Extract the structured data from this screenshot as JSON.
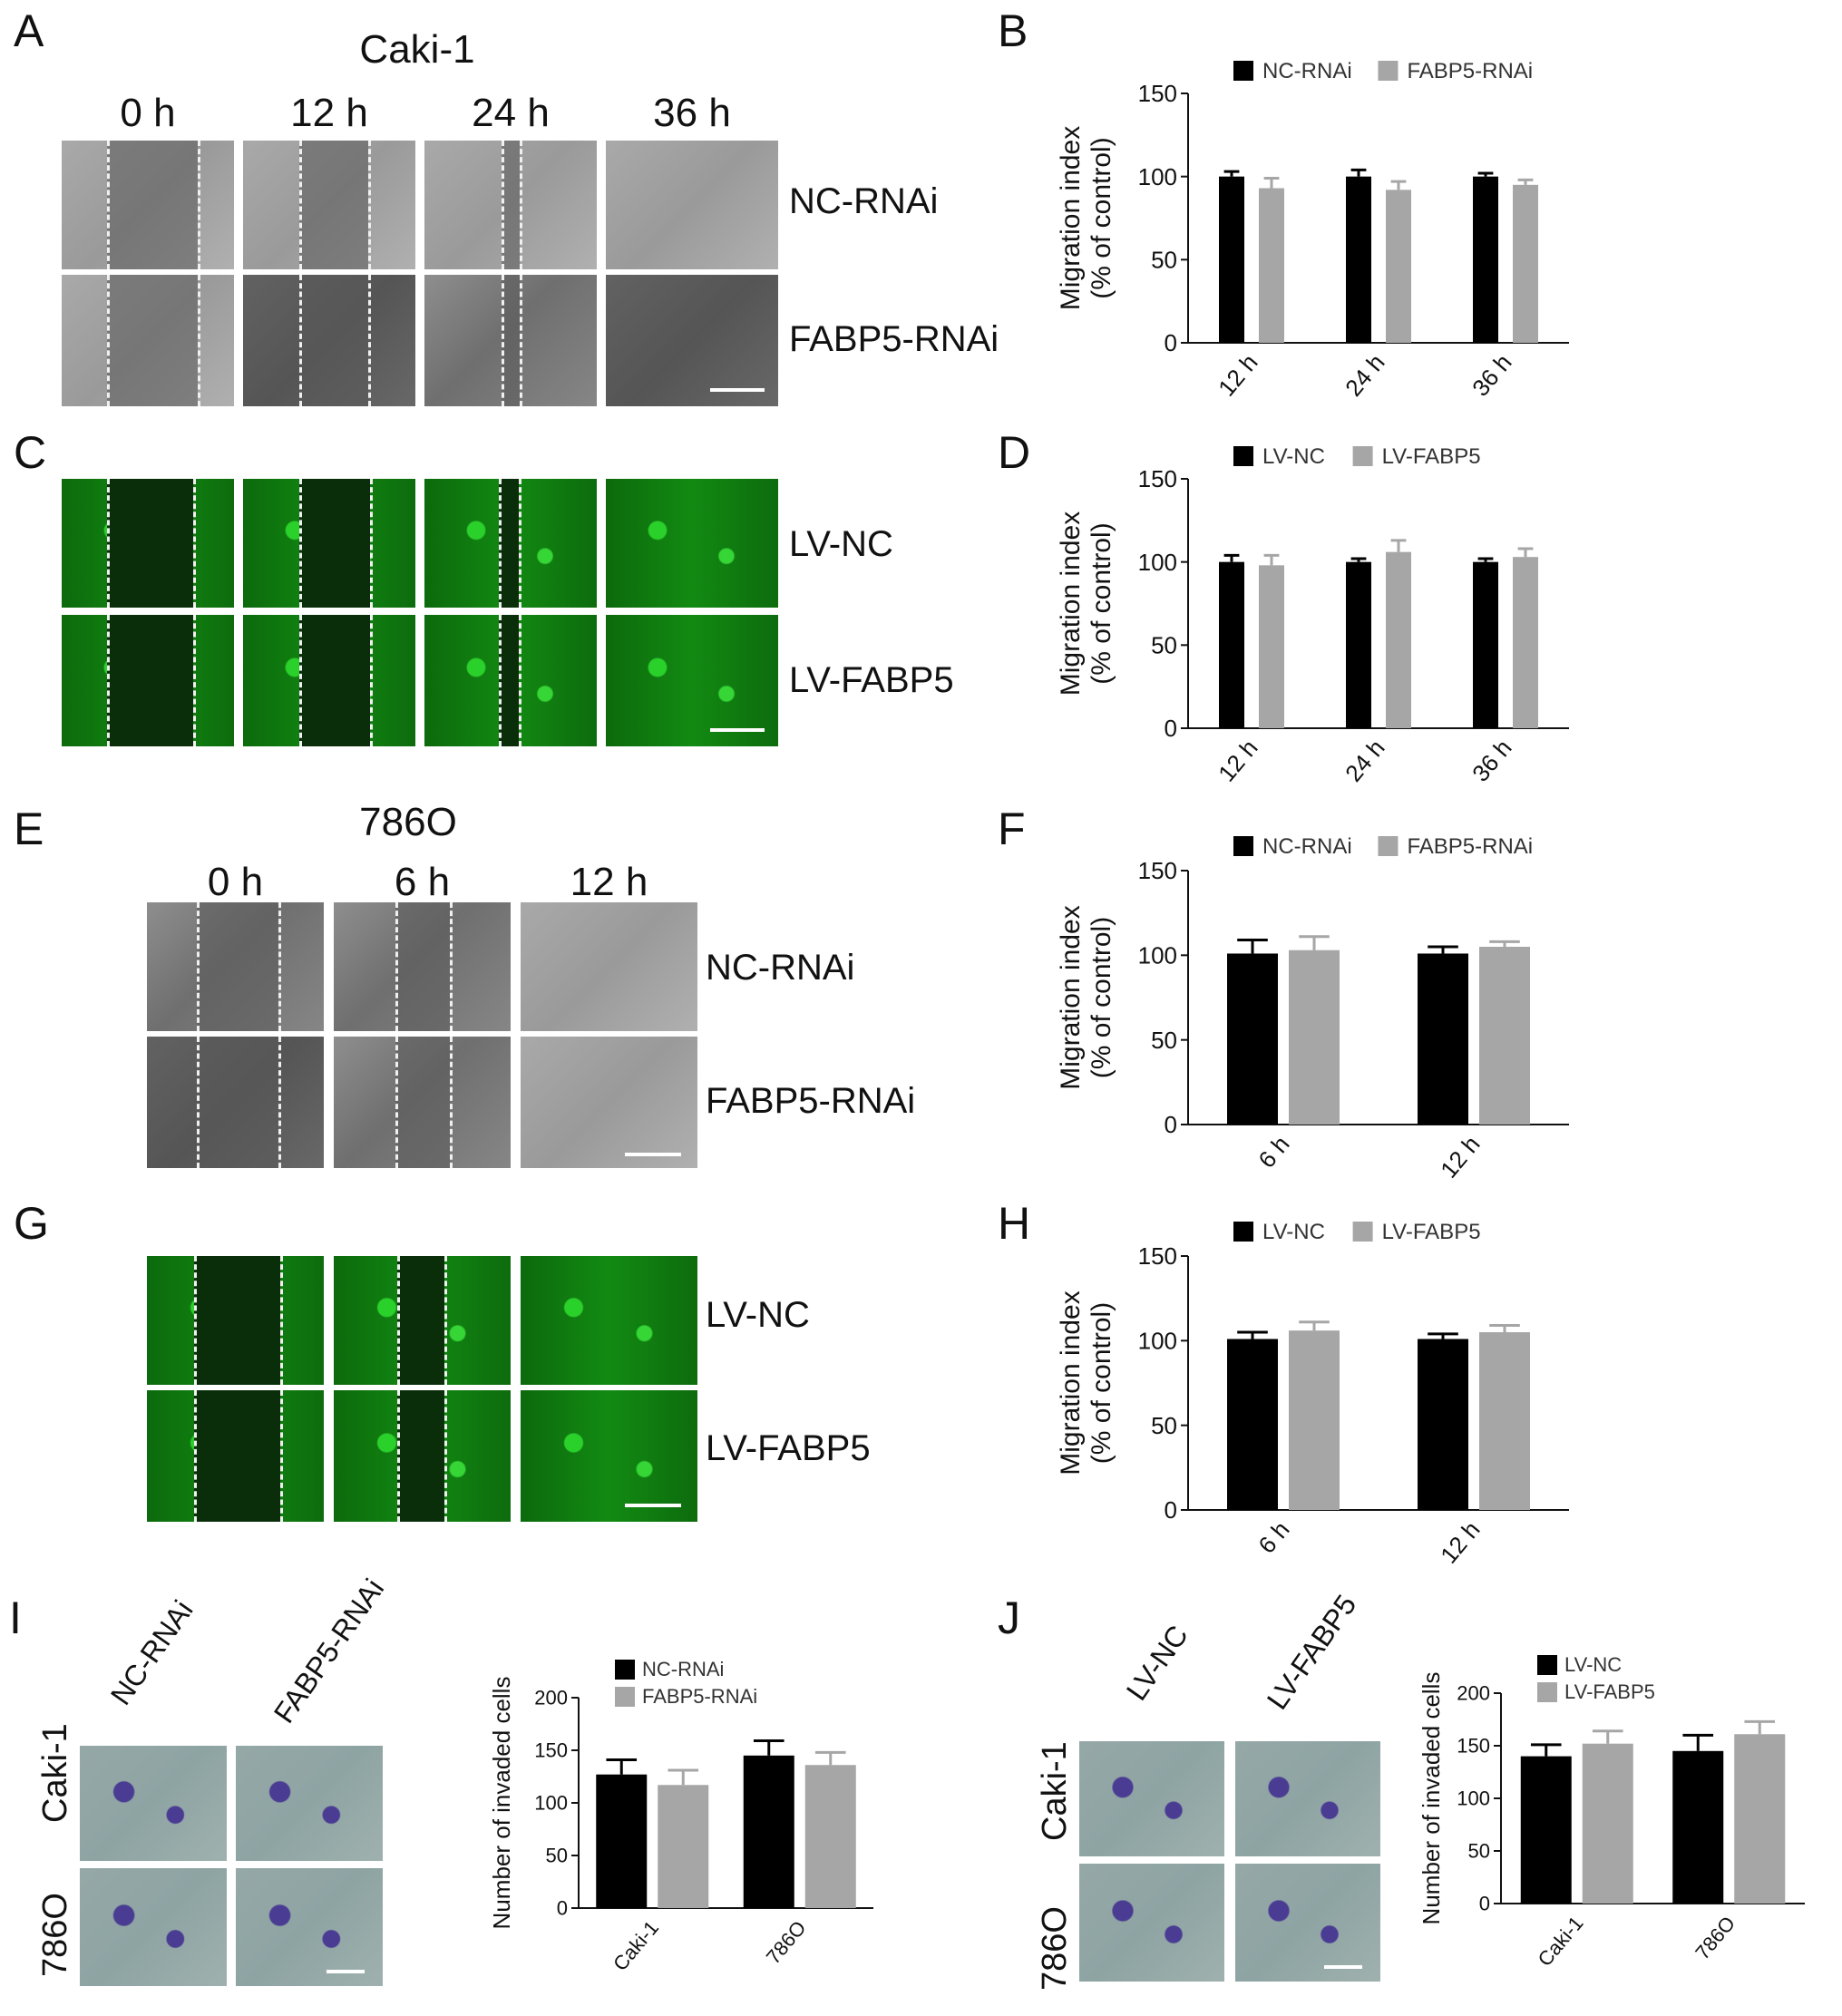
{
  "panel_letters": {
    "A": "A",
    "B": "B",
    "C": "C",
    "D": "D",
    "E": "E",
    "F": "F",
    "G": "G",
    "H": "H",
    "I": "I",
    "J": "J"
  },
  "panel_A": {
    "cell_line": "Caki-1",
    "times": [
      "0 h",
      "12 h",
      "24 h",
      "36 h"
    ],
    "rows": [
      "NC-RNAi",
      "FABP5-RNAi"
    ]
  },
  "panel_C": {
    "rows": [
      "LV-NC",
      "LV-FABP5"
    ]
  },
  "panel_E": {
    "cell_line": "786O",
    "times": [
      "0 h",
      "6 h",
      "12 h"
    ],
    "rows": [
      "NC-RNAi",
      "FABP5-RNAi"
    ]
  },
  "panel_G": {
    "rows": [
      "LV-NC",
      "LV-FABP5"
    ]
  },
  "panel_I": {
    "columns": [
      "NC-RNAi",
      "FABP5-RNAi"
    ],
    "rows": [
      "Caki-1",
      "786O"
    ]
  },
  "panel_J": {
    "columns": [
      "LV-NC",
      "LV-FABP5"
    ],
    "rows": [
      "Caki-1",
      "786O"
    ]
  },
  "colors": {
    "series1": "#000000",
    "series2": "#a6a6a6"
  },
  "chart_data": [
    {
      "id": "B",
      "type": "bar",
      "categories": [
        "12 h",
        "24 h",
        "36 h"
      ],
      "series": [
        {
          "name": "NC-RNAi",
          "values": [
            100,
            100,
            100
          ],
          "errors": [
            3,
            4,
            2
          ]
        },
        {
          "name": "FABP5-RNAi",
          "values": [
            93,
            92,
            95
          ],
          "errors": [
            6,
            5,
            3
          ]
        }
      ],
      "ylabel": "Migration index\n(% of control)",
      "ylim": [
        0,
        150
      ],
      "yticks": [
        0,
        50,
        100,
        150
      ],
      "legend": "top"
    },
    {
      "id": "D",
      "type": "bar",
      "categories": [
        "12 h",
        "24 h",
        "36 h"
      ],
      "series": [
        {
          "name": "LV-NC",
          "values": [
            100,
            100,
            100
          ],
          "errors": [
            4,
            2,
            2
          ]
        },
        {
          "name": "LV-FABP5",
          "values": [
            98,
            106,
            103
          ],
          "errors": [
            6,
            7,
            5
          ]
        }
      ],
      "ylabel": "Migration index\n(% of control)",
      "ylim": [
        0,
        150
      ],
      "yticks": [
        0,
        50,
        100,
        150
      ],
      "legend": "top"
    },
    {
      "id": "F",
      "type": "bar",
      "categories": [
        "6 h",
        "12 h"
      ],
      "series": [
        {
          "name": "NC-RNAi",
          "values": [
            101,
            101
          ],
          "errors": [
            8,
            4
          ]
        },
        {
          "name": "FABP5-RNAi",
          "values": [
            103,
            105
          ],
          "errors": [
            8,
            3
          ]
        }
      ],
      "ylabel": "Migration index\n(% of control)",
      "ylim": [
        0,
        150
      ],
      "yticks": [
        0,
        50,
        100,
        150
      ],
      "legend": "top"
    },
    {
      "id": "H",
      "type": "bar",
      "categories": [
        "6 h",
        "12 h"
      ],
      "series": [
        {
          "name": "LV-NC",
          "values": [
            101,
            101
          ],
          "errors": [
            4,
            3
          ]
        },
        {
          "name": "LV-FABP5",
          "values": [
            106,
            105
          ],
          "errors": [
            5,
            4
          ]
        }
      ],
      "ylabel": "Migration index\n(% of control)",
      "ylim": [
        0,
        150
      ],
      "yticks": [
        0,
        50,
        100,
        150
      ],
      "legend": "top"
    },
    {
      "id": "I",
      "type": "bar",
      "categories": [
        "Caki-1",
        "786O"
      ],
      "series": [
        {
          "name": "NC-RNAi",
          "values": [
            127,
            145
          ],
          "errors": [
            14,
            14
          ]
        },
        {
          "name": "FABP5-RNAi",
          "values": [
            117,
            136
          ],
          "errors": [
            14,
            12
          ]
        }
      ],
      "ylabel": "Number of invaded cells",
      "ylim": [
        0,
        200
      ],
      "yticks": [
        0,
        50,
        100,
        150,
        200
      ],
      "legend": "top-left"
    },
    {
      "id": "J",
      "type": "bar",
      "categories": [
        "Caki-1",
        "786O"
      ],
      "series": [
        {
          "name": "LV-NC",
          "values": [
            140,
            145
          ],
          "errors": [
            11,
            15
          ]
        },
        {
          "name": "LV-FABP5",
          "values": [
            152,
            161
          ],
          "errors": [
            12,
            12
          ]
        }
      ],
      "ylabel": "Number of invaded cells",
      "ylim": [
        0,
        200
      ],
      "yticks": [
        0,
        50,
        100,
        150,
        200
      ],
      "legend": "top-left"
    }
  ]
}
